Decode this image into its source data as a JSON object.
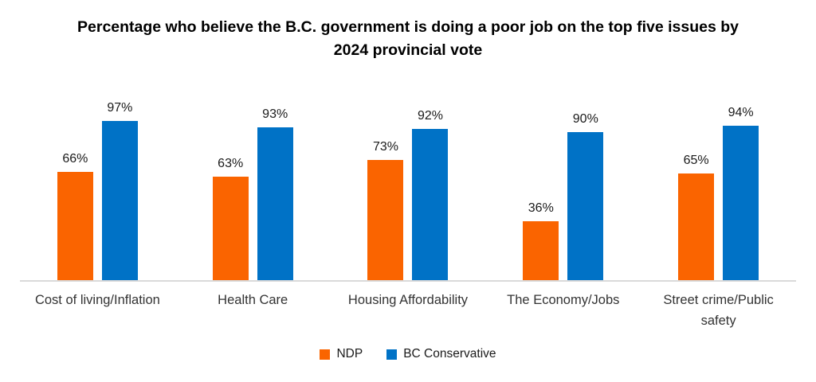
{
  "chart_data": {
    "type": "bar",
    "title": "Percentage who believe the B.C. government is doing a poor job on the top five issues by 2024 provincial vote",
    "categories": [
      "Cost of living/Inflation",
      "Health Care",
      "Housing Affordability",
      "The Economy/Jobs",
      "Street crime/Public safety"
    ],
    "series": [
      {
        "name": "NDP",
        "color": "#fa6400",
        "values": [
          66,
          63,
          73,
          36,
          65
        ]
      },
      {
        "name": "BC Conservative",
        "color": "#0072c6",
        "values": [
          97,
          93,
          92,
          90,
          94
        ]
      }
    ],
    "value_suffix": "%",
    "ylim": [
      0,
      100
    ],
    "grid": false,
    "legend_position": "bottom",
    "axis_line_color": "#d9d9d9",
    "background": "#ffffff"
  }
}
